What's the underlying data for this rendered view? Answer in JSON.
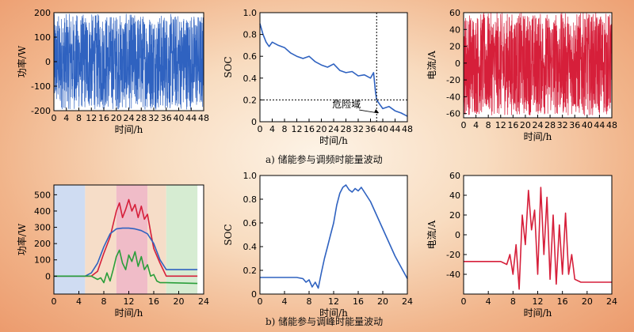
{
  "captions": {
    "top": "a) 储能参与调频时能量波动",
    "bottom": "b) 储能参与调峰时能量波动"
  },
  "annotation": {
    "danger_zone": "危险域"
  },
  "colors": {
    "blue": "#2f62c0",
    "red": "#d61f3a",
    "green": "#2a9e3a",
    "axis": "#000000"
  },
  "chart_data": [
    {
      "id": "fm-power",
      "type": "line",
      "xlabel": "时间/h",
      "ylabel": "功率/W",
      "xlim": [
        0,
        48
      ],
      "ylim": [
        -200,
        200
      ],
      "xticks": [
        0,
        4,
        8,
        12,
        16,
        20,
        24,
        28,
        32,
        36,
        40,
        44,
        48
      ],
      "yticks": [
        -200,
        -100,
        0,
        100,
        200
      ],
      "series": [
        {
          "style": "noise",
          "color": "#2f62c0",
          "range": [
            -195,
            195
          ]
        }
      ]
    },
    {
      "id": "fm-soc",
      "type": "line",
      "xlabel": "时间/h",
      "ylabel": "SOC",
      "xlim": [
        0,
        48
      ],
      "ylim": [
        0,
        1.0
      ],
      "xticks": [
        0,
        4,
        8,
        12,
        16,
        20,
        24,
        28,
        32,
        36,
        40,
        44,
        48
      ],
      "yticks": [
        0,
        0.2,
        0.4,
        0.6,
        0.8,
        1.0
      ],
      "threshold": 0.2,
      "marker_x": 38,
      "series": [
        {
          "color": "#2f62c0",
          "x": [
            0,
            1,
            2,
            3,
            4,
            6,
            8,
            10,
            12,
            14,
            16,
            18,
            20,
            22,
            24,
            26,
            28,
            30,
            32,
            34,
            36,
            37,
            37.6,
            38,
            39,
            40,
            42,
            44,
            46,
            48
          ],
          "y": [
            0.9,
            0.8,
            0.73,
            0.69,
            0.73,
            0.7,
            0.68,
            0.63,
            0.6,
            0.58,
            0.6,
            0.55,
            0.52,
            0.5,
            0.53,
            0.47,
            0.45,
            0.46,
            0.42,
            0.43,
            0.4,
            0.45,
            0.28,
            0.2,
            0.16,
            0.12,
            0.14,
            0.1,
            0.08,
            0.05
          ]
        }
      ]
    },
    {
      "id": "fm-current",
      "type": "line",
      "xlabel": "时间/h",
      "ylabel": "电流/A",
      "xlim": [
        0,
        48
      ],
      "ylim": [
        -65,
        60
      ],
      "xticks": [
        0,
        4,
        8,
        12,
        16,
        20,
        24,
        28,
        32,
        36,
        40,
        44,
        48
      ],
      "yticks": [
        -60,
        -40,
        -20,
        0,
        20,
        40,
        60
      ],
      "series": [
        {
          "style": "noise",
          "color": "#d61f3a",
          "range": [
            -62,
            60
          ]
        }
      ]
    },
    {
      "id": "ps-power",
      "type": "line",
      "xlabel": "时间/h",
      "ylabel": "功率/W",
      "xlim": [
        0,
        24
      ],
      "ylim": [
        -110,
        560
      ],
      "xticks": [
        0,
        4,
        8,
        12,
        16,
        20,
        24
      ],
      "yticks": [
        0,
        100,
        200,
        300,
        400,
        500
      ],
      "bands": [
        {
          "x0": 0,
          "x1": 5,
          "color": "#cfdcf2"
        },
        {
          "x0": 5,
          "x1": 10,
          "color": "#f6ddc8"
        },
        {
          "x0": 10,
          "x1": 15,
          "color": "#f0bcc8"
        },
        {
          "x0": 15,
          "x1": 18,
          "color": "#f6ddc8"
        },
        {
          "x0": 18,
          "x1": 23,
          "color": "#d6ecd2"
        }
      ],
      "series": [
        {
          "color": "#d61f3a",
          "x": [
            0,
            6,
            7,
            8,
            9,
            10,
            10.5,
            11,
            11.5,
            12,
            12.5,
            13,
            13.5,
            14,
            14.5,
            15,
            15.5,
            16,
            17,
            18,
            23
          ],
          "y": [
            0,
            0,
            30,
            140,
            240,
            400,
            450,
            360,
            410,
            470,
            400,
            440,
            360,
            430,
            350,
            380,
            270,
            170,
            80,
            0,
            0
          ]
        },
        {
          "color": "#2f62c0",
          "x": [
            0,
            5,
            6,
            7,
            8,
            9,
            10,
            11,
            12,
            13,
            14,
            15,
            16,
            17,
            18,
            23
          ],
          "y": [
            0,
            0,
            20,
            80,
            180,
            260,
            290,
            295,
            295,
            290,
            280,
            260,
            200,
            100,
            40,
            40
          ]
        },
        {
          "color": "#2a9e3a",
          "x": [
            0,
            6,
            7,
            7.5,
            8,
            8.5,
            9,
            9.5,
            10,
            10.5,
            11,
            11.5,
            12,
            12.5,
            13,
            13.5,
            14,
            14.5,
            15,
            15.5,
            16,
            16.5,
            17,
            18,
            23
          ],
          "y": [
            0,
            0,
            -20,
            -10,
            -40,
            20,
            -30,
            40,
            120,
            160,
            80,
            40,
            130,
            90,
            150,
            60,
            120,
            40,
            70,
            0,
            10,
            -30,
            -40,
            -40,
            -45
          ]
        }
      ]
    },
    {
      "id": "ps-soc",
      "type": "line",
      "xlabel": "时间/h",
      "ylabel": "SOC",
      "xlim": [
        0,
        24
      ],
      "ylim": [
        0,
        1.0
      ],
      "xticks": [
        0,
        4,
        8,
        12,
        16,
        20,
        24
      ],
      "yticks": [
        0,
        0.2,
        0.4,
        0.6,
        0.8,
        1.0
      ],
      "series": [
        {
          "color": "#2f62c0",
          "x": [
            0,
            6,
            7,
            7.5,
            8,
            8.5,
            9,
            9.5,
            10,
            10.5,
            11,
            11.5,
            12,
            12.5,
            13,
            13.5,
            14,
            14.5,
            15,
            15.5,
            16,
            16.5,
            17,
            18,
            20,
            22,
            24
          ],
          "y": [
            0.14,
            0.14,
            0.13,
            0.1,
            0.12,
            0.06,
            0.1,
            0.05,
            0.18,
            0.3,
            0.4,
            0.5,
            0.6,
            0.75,
            0.85,
            0.9,
            0.92,
            0.88,
            0.86,
            0.89,
            0.87,
            0.9,
            0.86,
            0.78,
            0.55,
            0.32,
            0.13
          ]
        }
      ]
    },
    {
      "id": "ps-current",
      "type": "line",
      "xlabel": "时间/h",
      "ylabel": "电流/A",
      "xlim": [
        0,
        24
      ],
      "ylim": [
        -60,
        60
      ],
      "xticks": [
        0,
        4,
        8,
        12,
        16,
        20,
        24
      ],
      "yticks": [
        -40,
        -20,
        0,
        20,
        40,
        60
      ],
      "series": [
        {
          "color": "#d61f3a",
          "x": [
            0,
            6,
            7,
            7.5,
            8,
            8.5,
            9,
            9.5,
            10,
            10.5,
            11,
            11.5,
            12,
            12.5,
            13,
            13.5,
            14,
            14.5,
            15,
            15.5,
            16,
            16.5,
            17,
            17.5,
            18,
            19,
            24
          ],
          "y": [
            -27,
            -27,
            -30,
            -20,
            -40,
            -10,
            -55,
            20,
            -10,
            45,
            5,
            25,
            -40,
            48,
            -20,
            38,
            -45,
            20,
            -50,
            10,
            -40,
            22,
            -40,
            -20,
            -45,
            -48,
            -48
          ]
        }
      ]
    }
  ]
}
